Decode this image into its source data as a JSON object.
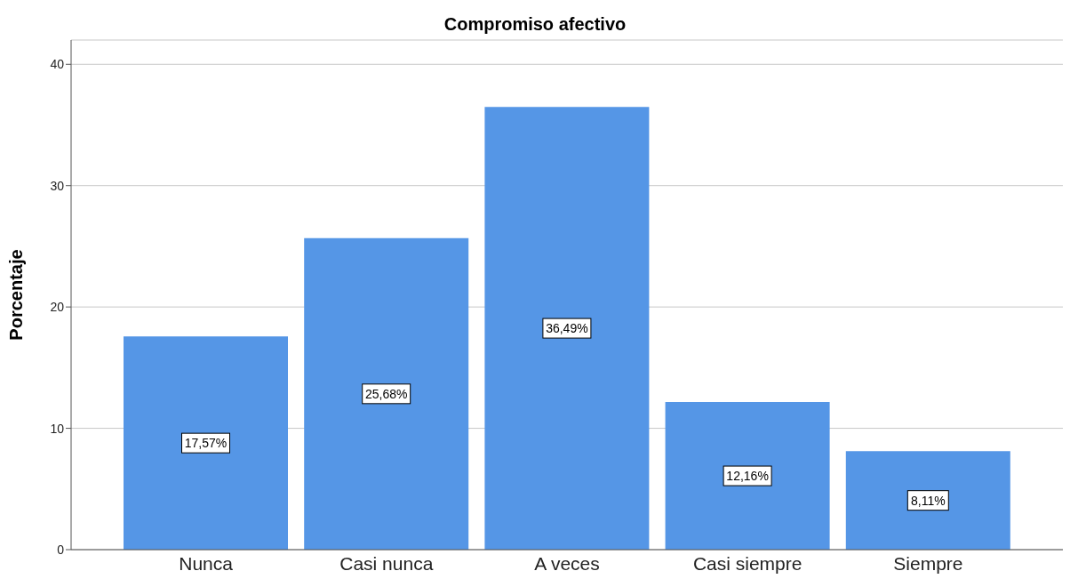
{
  "chart_data": {
    "type": "bar",
    "title": "Compromiso afectivo",
    "ylabel": "Porcentaje",
    "categories": [
      "Nunca",
      "Casi nunca",
      "A veces",
      "Casi siempre",
      "Siempre"
    ],
    "values": [
      17.57,
      25.68,
      36.49,
      12.16,
      8.11
    ],
    "value_labels": [
      "17,57%",
      "25,68%",
      "36,49%",
      "12,16%",
      "8,11%"
    ],
    "color": "#5596e6",
    "ylim": [
      0,
      42
    ],
    "yticks": [
      0,
      10,
      20,
      30,
      40
    ],
    "grid": "y"
  }
}
